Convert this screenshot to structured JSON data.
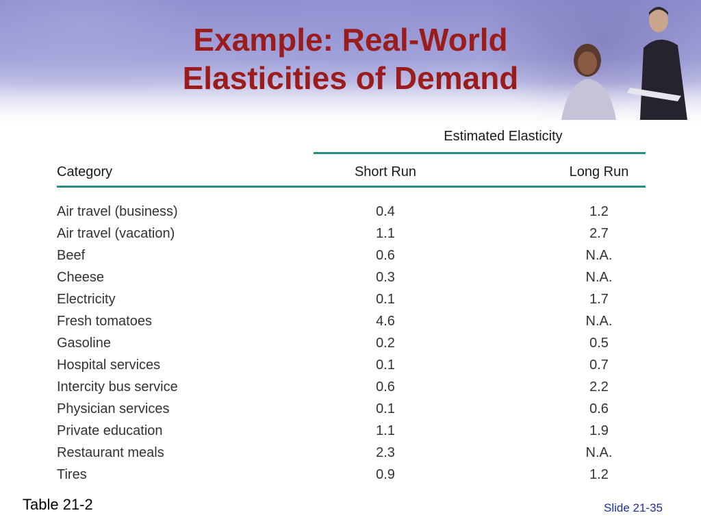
{
  "title_lines": [
    "Example: Real-World",
    "Elasticities of Demand"
  ],
  "table": {
    "group_header": "Estimated Elasticity",
    "columns": [
      "Category",
      "Short Run",
      "Long Run"
    ],
    "rows": [
      {
        "category": "Air travel (business)",
        "short_run": "0.4",
        "long_run": "1.2"
      },
      {
        "category": "Air travel (vacation)",
        "short_run": "1.1",
        "long_run": "2.7"
      },
      {
        "category": "Beef",
        "short_run": "0.6",
        "long_run": "N.A."
      },
      {
        "category": "Cheese",
        "short_run": "0.3",
        "long_run": "N.A."
      },
      {
        "category": "Electricity",
        "short_run": "0.1",
        "long_run": "1.7"
      },
      {
        "category": "Fresh tomatoes",
        "short_run": "4.6",
        "long_run": "N.A."
      },
      {
        "category": "Gasoline",
        "short_run": "0.2",
        "long_run": "0.5"
      },
      {
        "category": "Hospital services",
        "short_run": "0.1",
        "long_run": "0.7"
      },
      {
        "category": "Intercity bus service",
        "short_run": "0.6",
        "long_run": "2.2"
      },
      {
        "category": "Physician services",
        "short_run": "0.1",
        "long_run": "0.6"
      },
      {
        "category": "Private education",
        "short_run": "1.1",
        "long_run": "1.9"
      },
      {
        "category": "Restaurant meals",
        "short_run": "2.3",
        "long_run": "N.A."
      },
      {
        "category": "Tires",
        "short_run": "0.9",
        "long_run": "1.2"
      }
    ]
  },
  "footer": {
    "source": "Table 21-2",
    "slide_number": "Slide 21-35"
  },
  "colors": {
    "title": "#9b1c1c",
    "rule": "#2a8a84",
    "slide_number": "#1c2f9b",
    "banner": "#8e8fd0"
  }
}
